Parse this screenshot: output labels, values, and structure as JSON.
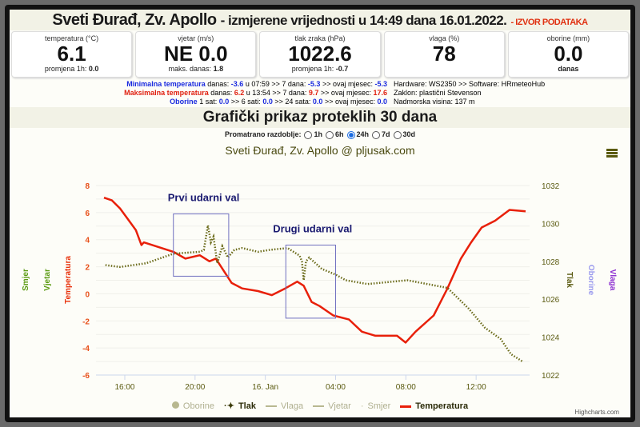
{
  "header": {
    "station": "Sveti Đurađ, Zv. Apollo",
    "subtitle": "- izmjerene vrijednosti u 14:49 dana 16.01.2022.",
    "source_link": "- IZVOR PODATAKA"
  },
  "stats": [
    {
      "label": "temperatura (°C)",
      "value": "6.1",
      "foot_label": "promjena 1h:",
      "foot_value": "0.0"
    },
    {
      "label": "vjetar (m/s)",
      "value": "NE 0.0",
      "foot_label": "maks. danas:",
      "foot_value": "1.8"
    },
    {
      "label": "tlak zraka (hPa)",
      "value": "1022.6",
      "foot_label": "promjena 1h:",
      "foot_value": "-0.7"
    },
    {
      "label": "vlaga (%)",
      "value": "78",
      "foot_label": "",
      "foot_value": ""
    },
    {
      "label": "oborine (mm)",
      "value": "0.0",
      "foot_label": "",
      "foot_value": "danas"
    }
  ],
  "extremes": {
    "min": {
      "label": "Minimalna temperatura",
      "t1": "danas:",
      "v1": "-3.6",
      "t2": "u 07:59 >> 7 dana:",
      "v2": "-5.3",
      "t3": ">> ovaj mjesec:",
      "v3": "-5.3"
    },
    "max": {
      "label": "Maksimalna temperatura",
      "t1": "danas:",
      "v1": "6.2",
      "t2": "u 13:54 >> 7 dana:",
      "v2": "9.7",
      "t3": ">> ovaj mjesec:",
      "v3": "17.6"
    },
    "rain": {
      "label": "Oborine",
      "t1": "1 sat:",
      "v1": "0.0",
      "t2": ">> 6 sati:",
      "v2": "0.0",
      "t3": ">> 24 sata:",
      "v3": "0.0",
      "t4": ">> ovaj mjesec:",
      "v4": "0.0"
    }
  },
  "station_info": [
    "Hardware: WS2350 >> Software: HRmeteoHub",
    "Zaklon: plastični Stevenson",
    "Nadmorska visina: 137 m"
  ],
  "section_title": "Grafički prikaz proteklih 30 dana",
  "period": {
    "label": "Promatrano razdoblje:",
    "options": [
      "1h",
      "6h",
      "24h",
      "7d",
      "30d"
    ],
    "selected": "24h"
  },
  "chart_data": {
    "type": "line",
    "title": "Sveti Đurađ, Zv. Apollo @ pljusak.com",
    "x_range": [
      "2022-01-15 14:49",
      "2022-01-16 14:49"
    ],
    "x_ticks": [
      "16:00",
      "20:00",
      "16. Jan",
      "04:00",
      "08:00",
      "12:00"
    ],
    "y_left": {
      "label": "Temperatura",
      "range": [
        -6,
        8
      ],
      "ticks": [
        "8",
        "6",
        "4",
        "2",
        "0",
        "-2",
        "-4",
        "-6"
      ]
    },
    "y_right": {
      "label": "Tlak",
      "range": [
        1022,
        1032
      ],
      "ticks": [
        "1032",
        "1030",
        "1028",
        "1026",
        "1024",
        "1022"
      ]
    },
    "extra_axis_labels": {
      "left": [
        "Smjer",
        "Vjetar"
      ],
      "right": [
        "Oborine",
        "Vlaga"
      ]
    },
    "grid": true,
    "series": [
      {
        "name": "Temperatura",
        "axis": "left",
        "color": "#e8200a",
        "points": [
          [
            "2022-01-15 14:49",
            7.1
          ],
          [
            "2022-01-15 15:16",
            6.9
          ],
          [
            "2022-01-15 15:44",
            6.3
          ],
          [
            "2022-01-15 16:11",
            5.5
          ],
          [
            "2022-01-15 16:38",
            4.7
          ],
          [
            "2022-01-15 16:57",
            3.6
          ],
          [
            "2022-01-15 17:05",
            3.8
          ],
          [
            "2022-01-15 18:46",
            3.1
          ],
          [
            "2022-01-15 19:27",
            2.6
          ],
          [
            "2022-01-15 20:16",
            2.85
          ],
          [
            "2022-01-15 20:49",
            2.4
          ],
          [
            "2022-01-15 21:11",
            2.6
          ],
          [
            "2022-01-15 22:05",
            0.8
          ],
          [
            "2022-01-15 22:41",
            0.4
          ],
          [
            "2022-01-15 23:35",
            0.2
          ],
          [
            "2022-01-16 00:22",
            -0.1
          ],
          [
            "2022-01-16 01:08",
            0.4
          ],
          [
            "2022-01-16 01:49",
            0.9
          ],
          [
            "2022-01-16 02:11",
            0.6
          ],
          [
            "2022-01-16 02:38",
            -0.6
          ],
          [
            "2022-01-16 03:05",
            -0.9
          ],
          [
            "2022-01-16 03:52",
            -1.6
          ],
          [
            "2022-01-16 04:46",
            -1.9
          ],
          [
            "2022-01-16 05:30",
            -2.8
          ],
          [
            "2022-01-16 06:16",
            -3.1
          ],
          [
            "2022-01-16 07:30",
            -3.1
          ],
          [
            "2022-01-16 07:59",
            -3.6
          ],
          [
            "2022-01-16 08:33",
            -2.8
          ],
          [
            "2022-01-16 09:35",
            -1.6
          ],
          [
            "2022-01-16 10:22",
            0.4
          ],
          [
            "2022-01-16 11:08",
            2.6
          ],
          [
            "2022-01-16 11:43",
            3.8
          ],
          [
            "2022-01-16 12:19",
            4.9
          ],
          [
            "2022-01-16 13:05",
            5.4
          ],
          [
            "2022-01-16 13:54",
            6.2
          ],
          [
            "2022-01-16 14:49",
            6.1
          ]
        ]
      },
      {
        "name": "Tlak",
        "axis": "right",
        "color": "#6b6b1a",
        "points": [
          [
            "2022-01-15 14:54",
            1027.8
          ],
          [
            "2022-01-15 15:44",
            1027.7
          ],
          [
            "2022-01-15 17:13",
            1027.9
          ],
          [
            "2022-01-15 18:46",
            1028.4
          ],
          [
            "2022-01-15 20:16",
            1028.5
          ],
          [
            "2022-01-15 20:30",
            1028.6
          ],
          [
            "2022-01-15 20:44",
            1029.9
          ],
          [
            "2022-01-15 20:54",
            1029.0
          ],
          [
            "2022-01-15 21:03",
            1029.3
          ],
          [
            "2022-01-15 21:16",
            1027.9
          ],
          [
            "2022-01-15 21:33",
            1028.8
          ],
          [
            "2022-01-15 21:52",
            1028.2
          ],
          [
            "2022-01-15 22:14",
            1028.6
          ],
          [
            "2022-01-15 22:41",
            1028.7
          ],
          [
            "2022-01-15 23:35",
            1028.5
          ],
          [
            "2022-01-16 00:13",
            1028.6
          ],
          [
            "2022-01-16 01:16",
            1028.7
          ],
          [
            "2022-01-16 01:57",
            1028.3
          ],
          [
            "2022-01-16 02:05",
            1028.0
          ],
          [
            "2022-01-16 02:11",
            1027.0
          ],
          [
            "2022-01-16 02:19",
            1028.0
          ],
          [
            "2022-01-16 02:30",
            1028.2
          ],
          [
            "2022-01-16 03:13",
            1027.6
          ],
          [
            "2022-01-16 04:00",
            1027.3
          ],
          [
            "2022-01-16 04:35",
            1027.0
          ],
          [
            "2022-01-16 05:49",
            1026.8
          ],
          [
            "2022-01-16 08:05",
            1027.0
          ],
          [
            "2022-01-16 10:22",
            1026.6
          ],
          [
            "2022-01-16 11:35",
            1025.5
          ],
          [
            "2022-01-16 12:30",
            1024.5
          ],
          [
            "2022-01-16 13:24",
            1023.9
          ],
          [
            "2022-01-16 13:59",
            1023.1
          ],
          [
            "2022-01-16 14:40",
            1022.7
          ]
        ]
      }
    ],
    "annotations": [
      {
        "text": "Prvi udarni val",
        "from": "2022-01-15 18:46",
        "to": "2022-01-15 21:55",
        "y_left_range": [
          1.3,
          5.9
        ]
      },
      {
        "text": "Drugi udarni val",
        "from": "2022-01-16 01:10",
        "to": "2022-01-16 04:00",
        "y_left_range": [
          -1.8,
          3.6
        ]
      }
    ],
    "legend": [
      {
        "name": "Oborine",
        "active": false,
        "color": "#b8b890"
      },
      {
        "name": "Tlak",
        "active": true,
        "color": "#3a3a0a"
      },
      {
        "name": "Vlaga",
        "active": false,
        "color": "#b8b890"
      },
      {
        "name": "Vjetar",
        "active": false,
        "color": "#b8b890"
      },
      {
        "name": "Smjer",
        "active": false,
        "color": "#b8b890"
      },
      {
        "name": "Temperatura",
        "active": true,
        "color": "#e8200a"
      }
    ],
    "legend_position": "bottom",
    "credits": "Highcharts.com"
  }
}
